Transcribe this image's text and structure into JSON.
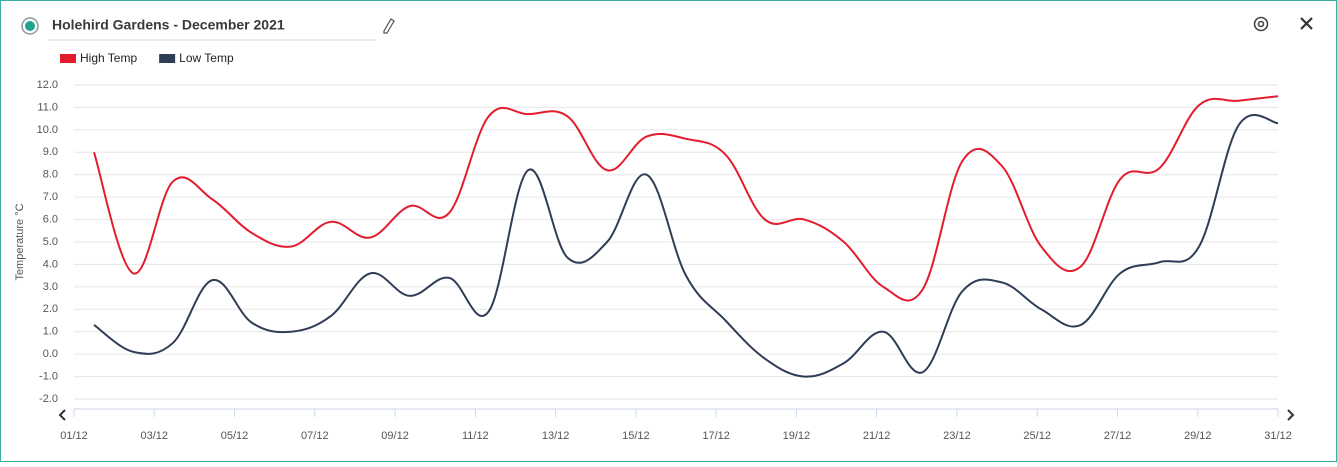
{
  "chart_data": {
    "type": "line",
    "title": "Holehird Gardens - December 2021",
    "y_label": "Temperature °C",
    "categories": [
      "01/12",
      null,
      "03/12",
      null,
      "05/12",
      null,
      "07/12",
      null,
      "09/12",
      null,
      "11/12",
      null,
      "13/12",
      null,
      "15/12",
      null,
      "17/12",
      null,
      "19/12",
      null,
      "21/12",
      null,
      "23/12",
      null,
      "25/12",
      null,
      "27/12",
      null,
      "29/12",
      null,
      "31/12"
    ],
    "series": [
      {
        "name": "High Temp",
        "color": "#e31d2e",
        "values": [
          9.0,
          3.6,
          7.7,
          6.9,
          5.4,
          4.8,
          5.9,
          5.2,
          6.6,
          6.3,
          10.6,
          10.7,
          10.6,
          8.2,
          9.7,
          9.6,
          8.9,
          6.0,
          6.0,
          5.0,
          3.0,
          2.9,
          8.6,
          8.4,
          4.8,
          3.9,
          7.8,
          8.3,
          11.1,
          11.3,
          11.5
        ]
      },
      {
        "name": "Low Temp",
        "color": "#2f3d55",
        "values": [
          1.3,
          0.1,
          0.5,
          3.3,
          1.4,
          1.0,
          1.7,
          3.6,
          2.6,
          3.4,
          1.9,
          8.2,
          4.3,
          5.0,
          8.0,
          3.5,
          1.5,
          -0.2,
          -1.0,
          -0.4,
          1.0,
          -0.8,
          2.8,
          3.2,
          2.0,
          1.3,
          3.6,
          4.1,
          4.8,
          10.2,
          10.3
        ]
      }
    ],
    "ylim": [
      -2,
      12
    ],
    "yticks": [
      {
        "value": -2,
        "label": "-2.0"
      },
      {
        "value": -1,
        "label": "-1.0"
      },
      {
        "value": 0,
        "label": "0.0"
      },
      {
        "value": 1,
        "label": "1.0"
      },
      {
        "value": 2,
        "label": "2.0"
      },
      {
        "value": 3,
        "label": "3.0"
      },
      {
        "value": 4,
        "label": "4.0"
      },
      {
        "value": 5,
        "label": "5.0"
      },
      {
        "value": 6,
        "label": "6.0"
      },
      {
        "value": 7,
        "label": "7.0"
      },
      {
        "value": 8,
        "label": "8.0"
      },
      {
        "value": 9,
        "label": "9.0"
      },
      {
        "value": 10,
        "label": "10.0"
      },
      {
        "value": 11,
        "label": "11.0"
      },
      {
        "value": 12,
        "label": "12.0"
      }
    ],
    "grid": true
  }
}
